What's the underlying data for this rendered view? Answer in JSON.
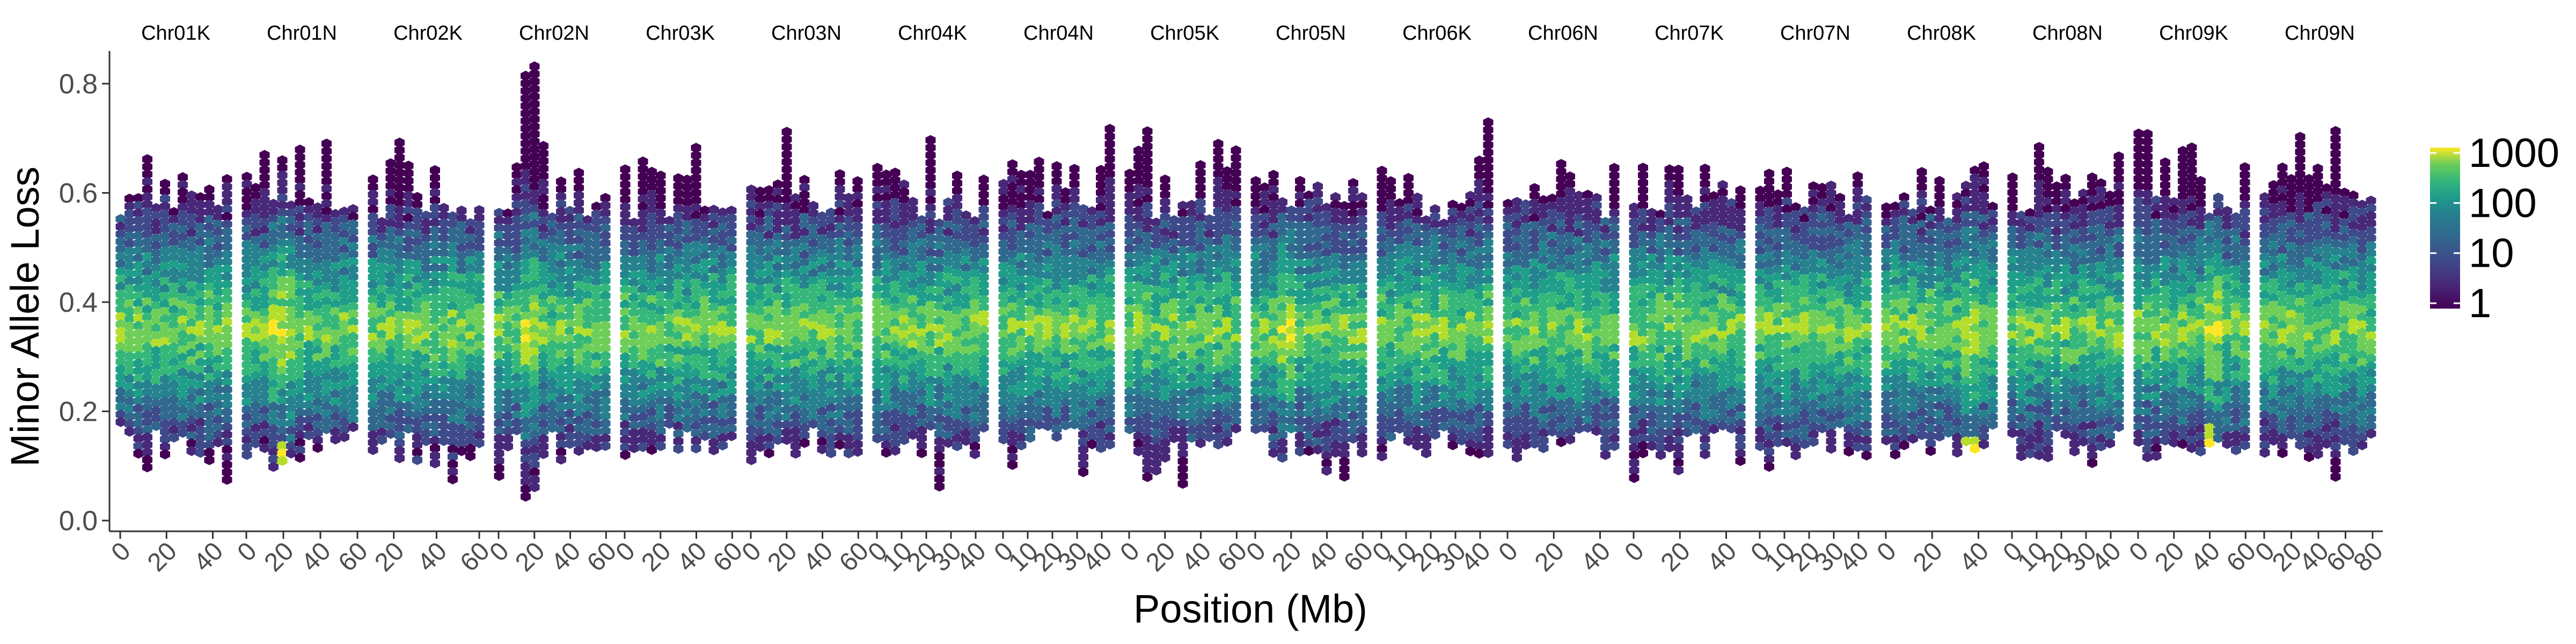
{
  "chart_data": {
    "type": "heatmap",
    "subtype": "hexbin-faceted",
    "xlabel": "Position (Mb)",
    "ylabel": "Minor Allele Loss",
    "ylim": [
      0.0,
      0.85
    ],
    "yticks": [
      "0.0",
      "0.2",
      "0.4",
      "0.6",
      "0.8"
    ],
    "grid": false,
    "color_scale": "viridis",
    "color_scale_type": "log",
    "legend": {
      "position": "right",
      "labels": [
        "1000",
        "100",
        "10",
        "1"
      ],
      "values": [
        1000,
        100,
        10,
        1
      ]
    },
    "colors": {
      "low": "#440154",
      "mid": "#21908c",
      "high": "#fde725"
    },
    "panels": [
      {
        "name": "Chr01K",
        "ticks": [
          "0",
          "20",
          "40"
        ],
        "xlim": [
          0,
          48
        ]
      },
      {
        "name": "Chr01N",
        "ticks": [
          "0",
          "20",
          "40",
          "60"
        ],
        "xlim": [
          0,
          60
        ]
      },
      {
        "name": "Chr02K",
        "ticks": [
          "20",
          "40",
          "60"
        ],
        "xlim": [
          10,
          62
        ]
      },
      {
        "name": "Chr02N",
        "ticks": [
          "0",
          "20",
          "40",
          "60"
        ],
        "xlim": [
          0,
          62
        ]
      },
      {
        "name": "Chr03K",
        "ticks": [
          "0",
          "20",
          "40",
          "60"
        ],
        "xlim": [
          0,
          62
        ]
      },
      {
        "name": "Chr03N",
        "ticks": [
          "0",
          "20",
          "40",
          "60"
        ],
        "xlim": [
          0,
          62
        ]
      },
      {
        "name": "Chr04K",
        "ticks": [
          "0",
          "10",
          "20",
          "30",
          "40"
        ],
        "xlim": [
          0,
          45
        ]
      },
      {
        "name": "Chr04N",
        "ticks": [
          "0",
          "10",
          "20",
          "30",
          "40"
        ],
        "xlim": [
          0,
          45
        ]
      },
      {
        "name": "Chr05K",
        "ticks": [
          "0",
          "20",
          "40",
          "60"
        ],
        "xlim": [
          0,
          62
        ]
      },
      {
        "name": "Chr05N",
        "ticks": [
          "0",
          "20",
          "40",
          "60"
        ],
        "xlim": [
          0,
          62
        ]
      },
      {
        "name": "Chr06K",
        "ticks": [
          "0",
          "10",
          "20",
          "30",
          "40"
        ],
        "xlim": [
          0,
          45
        ]
      },
      {
        "name": "Chr06N",
        "ticks": [
          "0",
          "20",
          "40"
        ],
        "xlim": [
          0,
          48
        ]
      },
      {
        "name": "Chr07K",
        "ticks": [
          "0",
          "20",
          "40"
        ],
        "xlim": [
          0,
          48
        ]
      },
      {
        "name": "Chr07N",
        "ticks": [
          "0",
          "10",
          "20",
          "30",
          "40"
        ],
        "xlim": [
          0,
          45
        ]
      },
      {
        "name": "Chr08K",
        "ticks": [
          "0",
          "20",
          "40"
        ],
        "xlim": [
          0,
          48
        ]
      },
      {
        "name": "Chr08N",
        "ticks": [
          "0",
          "10",
          "20",
          "30",
          "40"
        ],
        "xlim": [
          0,
          45
        ]
      },
      {
        "name": "Chr09K",
        "ticks": [
          "0",
          "20",
          "40",
          "60"
        ],
        "xlim": [
          0,
          62
        ]
      },
      {
        "name": "Chr09N",
        "ticks": [
          "0",
          "20",
          "40",
          "60",
          "80"
        ],
        "xlim": [
          0,
          82
        ]
      }
    ],
    "density_profile": {
      "core_range": [
        0.17,
        0.55
      ],
      "peak": 0.35,
      "tail_range": [
        0.08,
        0.72
      ],
      "spike_panels": {
        "Chr02N": {
          "x": 20,
          "ymax": 0.85,
          "ymin": 0.02
        },
        "Chr01N": {
          "x": 20,
          "ymin": 0.08,
          "low_cluster": 0.12
        },
        "Chr09K": {
          "x": 40,
          "low_cluster": 0.15
        },
        "Chr08K": {
          "x": 35,
          "low_cluster": 0.13
        },
        "Chr05N": {
          "x": 20,
          "low_cluster": 0.11
        }
      }
    }
  }
}
